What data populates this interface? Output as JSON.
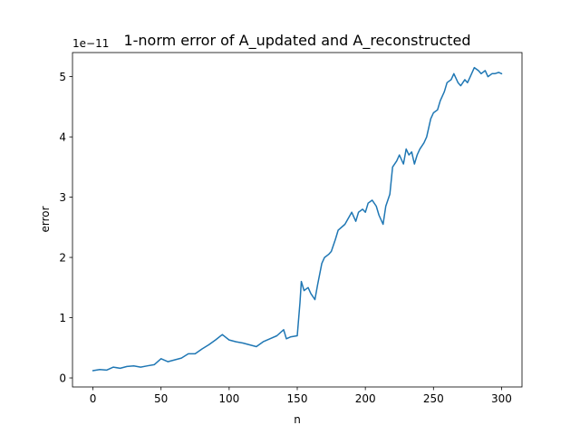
{
  "chart_data": {
    "type": "line",
    "title": "1-norm error of A_updated and A_reconstructed",
    "xlabel": "n",
    "ylabel": "error",
    "offset_label": "1e−11",
    "y_scale_factor": 1e-11,
    "xlim": [
      -15,
      315
    ],
    "ylim": [
      -0.15,
      5.4
    ],
    "xticks": [
      0,
      50,
      100,
      150,
      200,
      250,
      300
    ],
    "xtick_labels": [
      "0",
      "50",
      "100",
      "150",
      "200",
      "250",
      "300"
    ],
    "yticks": [
      0,
      1,
      2,
      3,
      4,
      5
    ],
    "ytick_labels": [
      "0",
      "1",
      "2",
      "3",
      "4",
      "5"
    ],
    "grid": false,
    "legend": "none",
    "line_color": "#1f77b4",
    "series": [
      {
        "x": [
          0,
          5,
          10,
          15,
          20,
          25,
          30,
          35,
          40,
          45,
          50,
          55,
          60,
          65,
          70,
          75,
          80,
          85,
          90,
          95,
          100,
          105,
          110,
          115,
          120,
          125,
          130,
          135,
          140,
          142,
          145,
          150,
          152,
          153,
          155,
          158,
          160,
          163,
          165,
          168,
          170,
          173,
          175,
          178,
          180,
          185,
          190,
          193,
          195,
          198,
          200,
          202,
          205,
          208,
          210,
          213,
          215,
          218,
          220,
          223,
          225,
          228,
          230,
          232,
          234,
          236,
          238,
          240,
          243,
          245,
          248,
          250,
          253,
          255,
          258,
          260,
          263,
          265,
          268,
          270,
          273,
          275,
          278,
          280,
          283,
          285,
          288,
          290,
          293,
          295,
          298,
          300
        ],
        "y": [
          0.12,
          0.14,
          0.13,
          0.18,
          0.16,
          0.19,
          0.2,
          0.18,
          0.2,
          0.22,
          0.32,
          0.27,
          0.3,
          0.33,
          0.4,
          0.4,
          0.48,
          0.55,
          0.63,
          0.72,
          0.63,
          0.6,
          0.58,
          0.55,
          0.52,
          0.6,
          0.65,
          0.7,
          0.8,
          0.65,
          0.68,
          0.7,
          1.25,
          1.6,
          1.45,
          1.5,
          1.4,
          1.3,
          1.55,
          1.9,
          2.0,
          2.05,
          2.1,
          2.3,
          2.45,
          2.55,
          2.75,
          2.6,
          2.75,
          2.8,
          2.75,
          2.9,
          2.95,
          2.85,
          2.7,
          2.55,
          2.85,
          3.05,
          3.5,
          3.6,
          3.7,
          3.55,
          3.8,
          3.7,
          3.75,
          3.55,
          3.7,
          3.8,
          3.9,
          4.0,
          4.3,
          4.4,
          4.45,
          4.6,
          4.75,
          4.9,
          4.95,
          5.05,
          4.9,
          4.85,
          4.95,
          4.9,
          5.05,
          5.15,
          5.1,
          5.05,
          5.1,
          5.0,
          5.05,
          5.05,
          5.07,
          5.05
        ]
      }
    ]
  }
}
